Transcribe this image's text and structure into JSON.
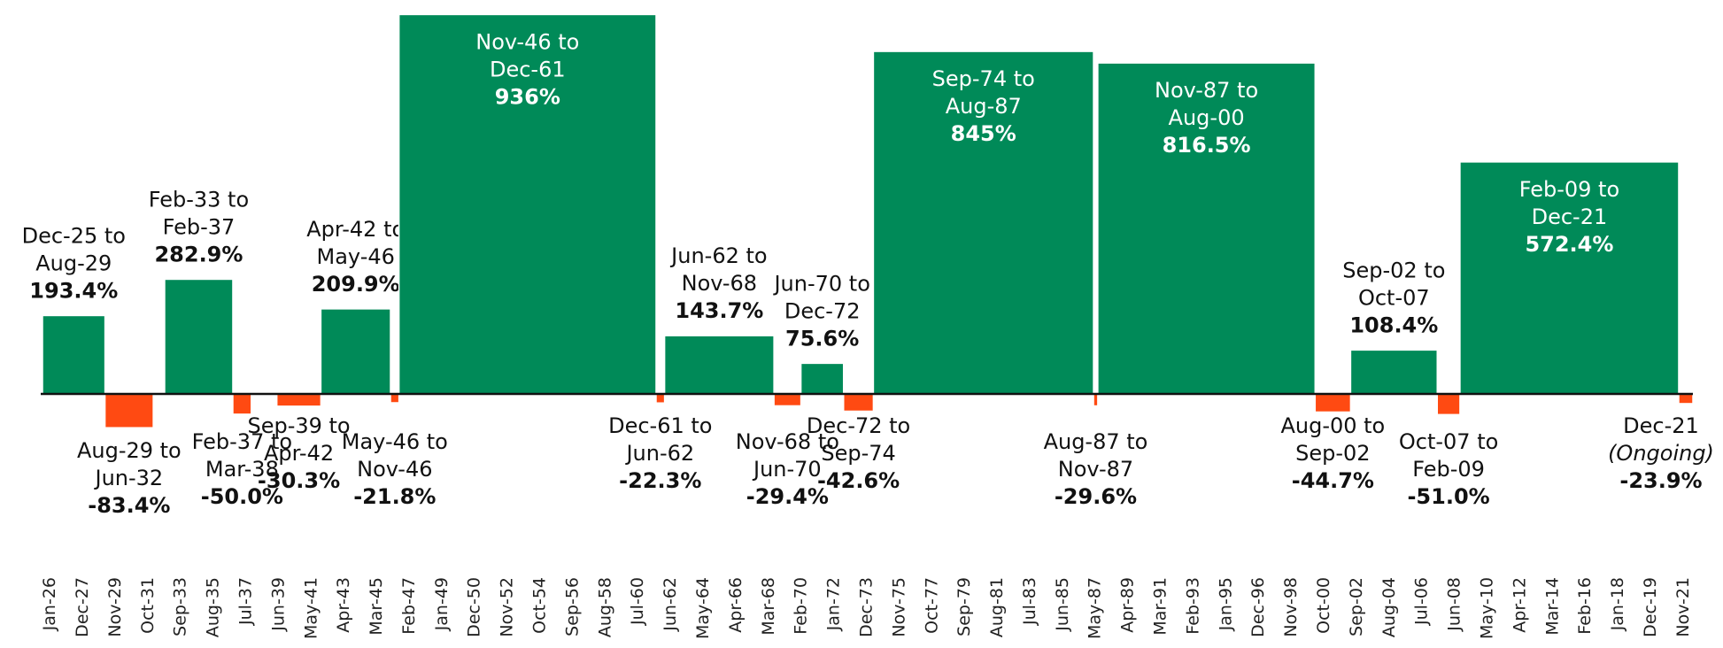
{
  "chart_data": {
    "type": "bar",
    "up_color": "#008a58",
    "down_color": "#ff4a12",
    "xlim": [
      "Dec-25",
      "Oct-22"
    ],
    "ylim": [
      -100,
      950
    ],
    "xticks": [
      "Jan-26",
      "Dec-27",
      "Nov-29",
      "Oct-31",
      "Sep-33",
      "Aug-35",
      "Jul-37",
      "Jun-39",
      "May-41",
      "Apr-43",
      "Mar-45",
      "Feb-47",
      "Jan-49",
      "Dec-50",
      "Nov-52",
      "Oct-54",
      "Sep-56",
      "Aug-58",
      "Jul-60",
      "Jun-62",
      "May-64",
      "Apr-66",
      "Mar-68",
      "Feb-70",
      "Jan-72",
      "Dec-73",
      "Nov-75",
      "Oct-77",
      "Sep-79",
      "Aug-81",
      "Jul-83",
      "Jun-85",
      "May-87",
      "Apr-89",
      "Mar-91",
      "Feb-93",
      "Jan-95",
      "Dec-96",
      "Nov-98",
      "Oct-00",
      "Sep-02",
      "Aug-04",
      "Jul-06",
      "Jun-08",
      "May-10",
      "Apr-12",
      "Mar-14",
      "Feb-16",
      "Jan-18",
      "Dec-19",
      "Nov-21"
    ],
    "periods": [
      {
        "lines": [
          "Dec-25 to",
          "Aug-29"
        ],
        "value": 193.4,
        "value_label": "193.4%"
      },
      {
        "lines": [
          "Aug-29 to",
          "Jun-32"
        ],
        "value": -83.4,
        "value_label": "-83.4%"
      },
      {
        "lines": [
          "Feb-33 to",
          "Feb-37"
        ],
        "value": 282.9,
        "value_label": "282.9%"
      },
      {
        "lines": [
          "Feb-37 to",
          "Mar-38"
        ],
        "value": -50.0,
        "value_label": "-50.0%"
      },
      {
        "lines": [
          "Sep-39 to",
          "Apr-42"
        ],
        "value": -30.3,
        "value_label": "-30.3%"
      },
      {
        "lines": [
          "Apr-42 to",
          "May-46"
        ],
        "value": 209.9,
        "value_label": "209.9%"
      },
      {
        "lines": [
          "May-46 to",
          "Nov-46"
        ],
        "value": -21.8,
        "value_label": "-21.8%"
      },
      {
        "lines": [
          "Nov-46 to",
          "Dec-61"
        ],
        "value": 936,
        "value_label": "936%"
      },
      {
        "lines": [
          "Dec-61 to",
          "Jun-62"
        ],
        "value": -22.3,
        "value_label": "-22.3%"
      },
      {
        "lines": [
          "Jun-62 to",
          "Nov-68"
        ],
        "value": 143.7,
        "value_label": "143.7%"
      },
      {
        "lines": [
          "Nov-68 to",
          "Jun-70"
        ],
        "value": -29.4,
        "value_label": "-29.4%"
      },
      {
        "lines": [
          "Jun-70 to",
          "Dec-72"
        ],
        "value": 75.6,
        "value_label": "75.6%"
      },
      {
        "lines": [
          "Dec-72 to",
          "Sep-74"
        ],
        "value": -42.6,
        "value_label": "-42.6%"
      },
      {
        "lines": [
          "Sep-74 to",
          "Aug-87"
        ],
        "value": 845,
        "value_label": "845%"
      },
      {
        "lines": [
          "Aug-87 to",
          "Nov-87"
        ],
        "value": -29.6,
        "value_label": "-29.6%"
      },
      {
        "lines": [
          "Nov-87 to",
          "Aug-00"
        ],
        "value": 816.5,
        "value_label": "816.5%"
      },
      {
        "lines": [
          "Aug-00 to",
          "Sep-02"
        ],
        "value": -44.7,
        "value_label": "-44.7%"
      },
      {
        "lines": [
          "Sep-02 to",
          "Oct-07"
        ],
        "value": 108.4,
        "value_label": "108.4%"
      },
      {
        "lines": [
          "Oct-07 to",
          "Feb-09"
        ],
        "value": -51.0,
        "value_label": "-51.0%"
      },
      {
        "lines": [
          "Feb-09 to",
          "Dec-21"
        ],
        "value": 572.4,
        "value_label": "572.4%"
      },
      {
        "lines": [
          "Dec-21",
          "(Ongoing)"
        ],
        "value": -23.9,
        "value_label": "-23.9%"
      }
    ]
  }
}
